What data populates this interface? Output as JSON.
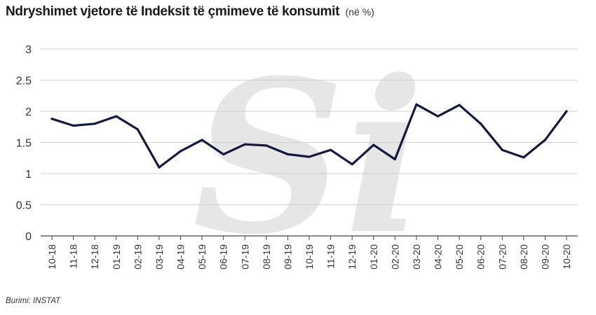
{
  "title": "Ndryshimet vjetore të Indeksit të çmimeve të konsumit",
  "title_unit": "(në %)",
  "source": "Burimi: INSTAT",
  "watermark_text": "Si",
  "colors": {
    "line": "#14193f",
    "grid": "#cfcfcf",
    "axis": "#333333",
    "watermark": "#e6e6e6"
  },
  "chart_data": {
    "type": "line",
    "title": "Ndryshimet vjetore të Indeksit të çmimeve të konsumit",
    "xlabel": "",
    "ylabel": "",
    "ylim": [
      0,
      3
    ],
    "yticks": [
      0,
      0.5,
      1,
      1.5,
      2,
      2.5,
      3
    ],
    "ytick_labels": [
      "0",
      "0.5",
      "1",
      "1.5",
      "2",
      "2.5",
      "3"
    ],
    "grid": true,
    "categories": [
      "10-18",
      "11-18",
      "12-18",
      "01-19",
      "02-19",
      "03-19",
      "04-19",
      "05-19",
      "06-19",
      "07-19",
      "08-19",
      "09-19",
      "10-19",
      "11-19",
      "12-19",
      "01-20",
      "02-20",
      "03-20",
      "04-20",
      "05-20",
      "06-20",
      "07-20",
      "08-20",
      "09-20",
      "10-20"
    ],
    "series": [
      {
        "values": [
          1.88,
          1.77,
          1.8,
          1.92,
          1.71,
          1.1,
          1.36,
          1.54,
          1.31,
          1.47,
          1.45,
          1.31,
          1.27,
          1.38,
          1.15,
          1.46,
          1.23,
          2.11,
          1.92,
          2.1,
          1.8,
          1.38,
          1.26,
          1.54,
          2.0
        ]
      }
    ]
  }
}
